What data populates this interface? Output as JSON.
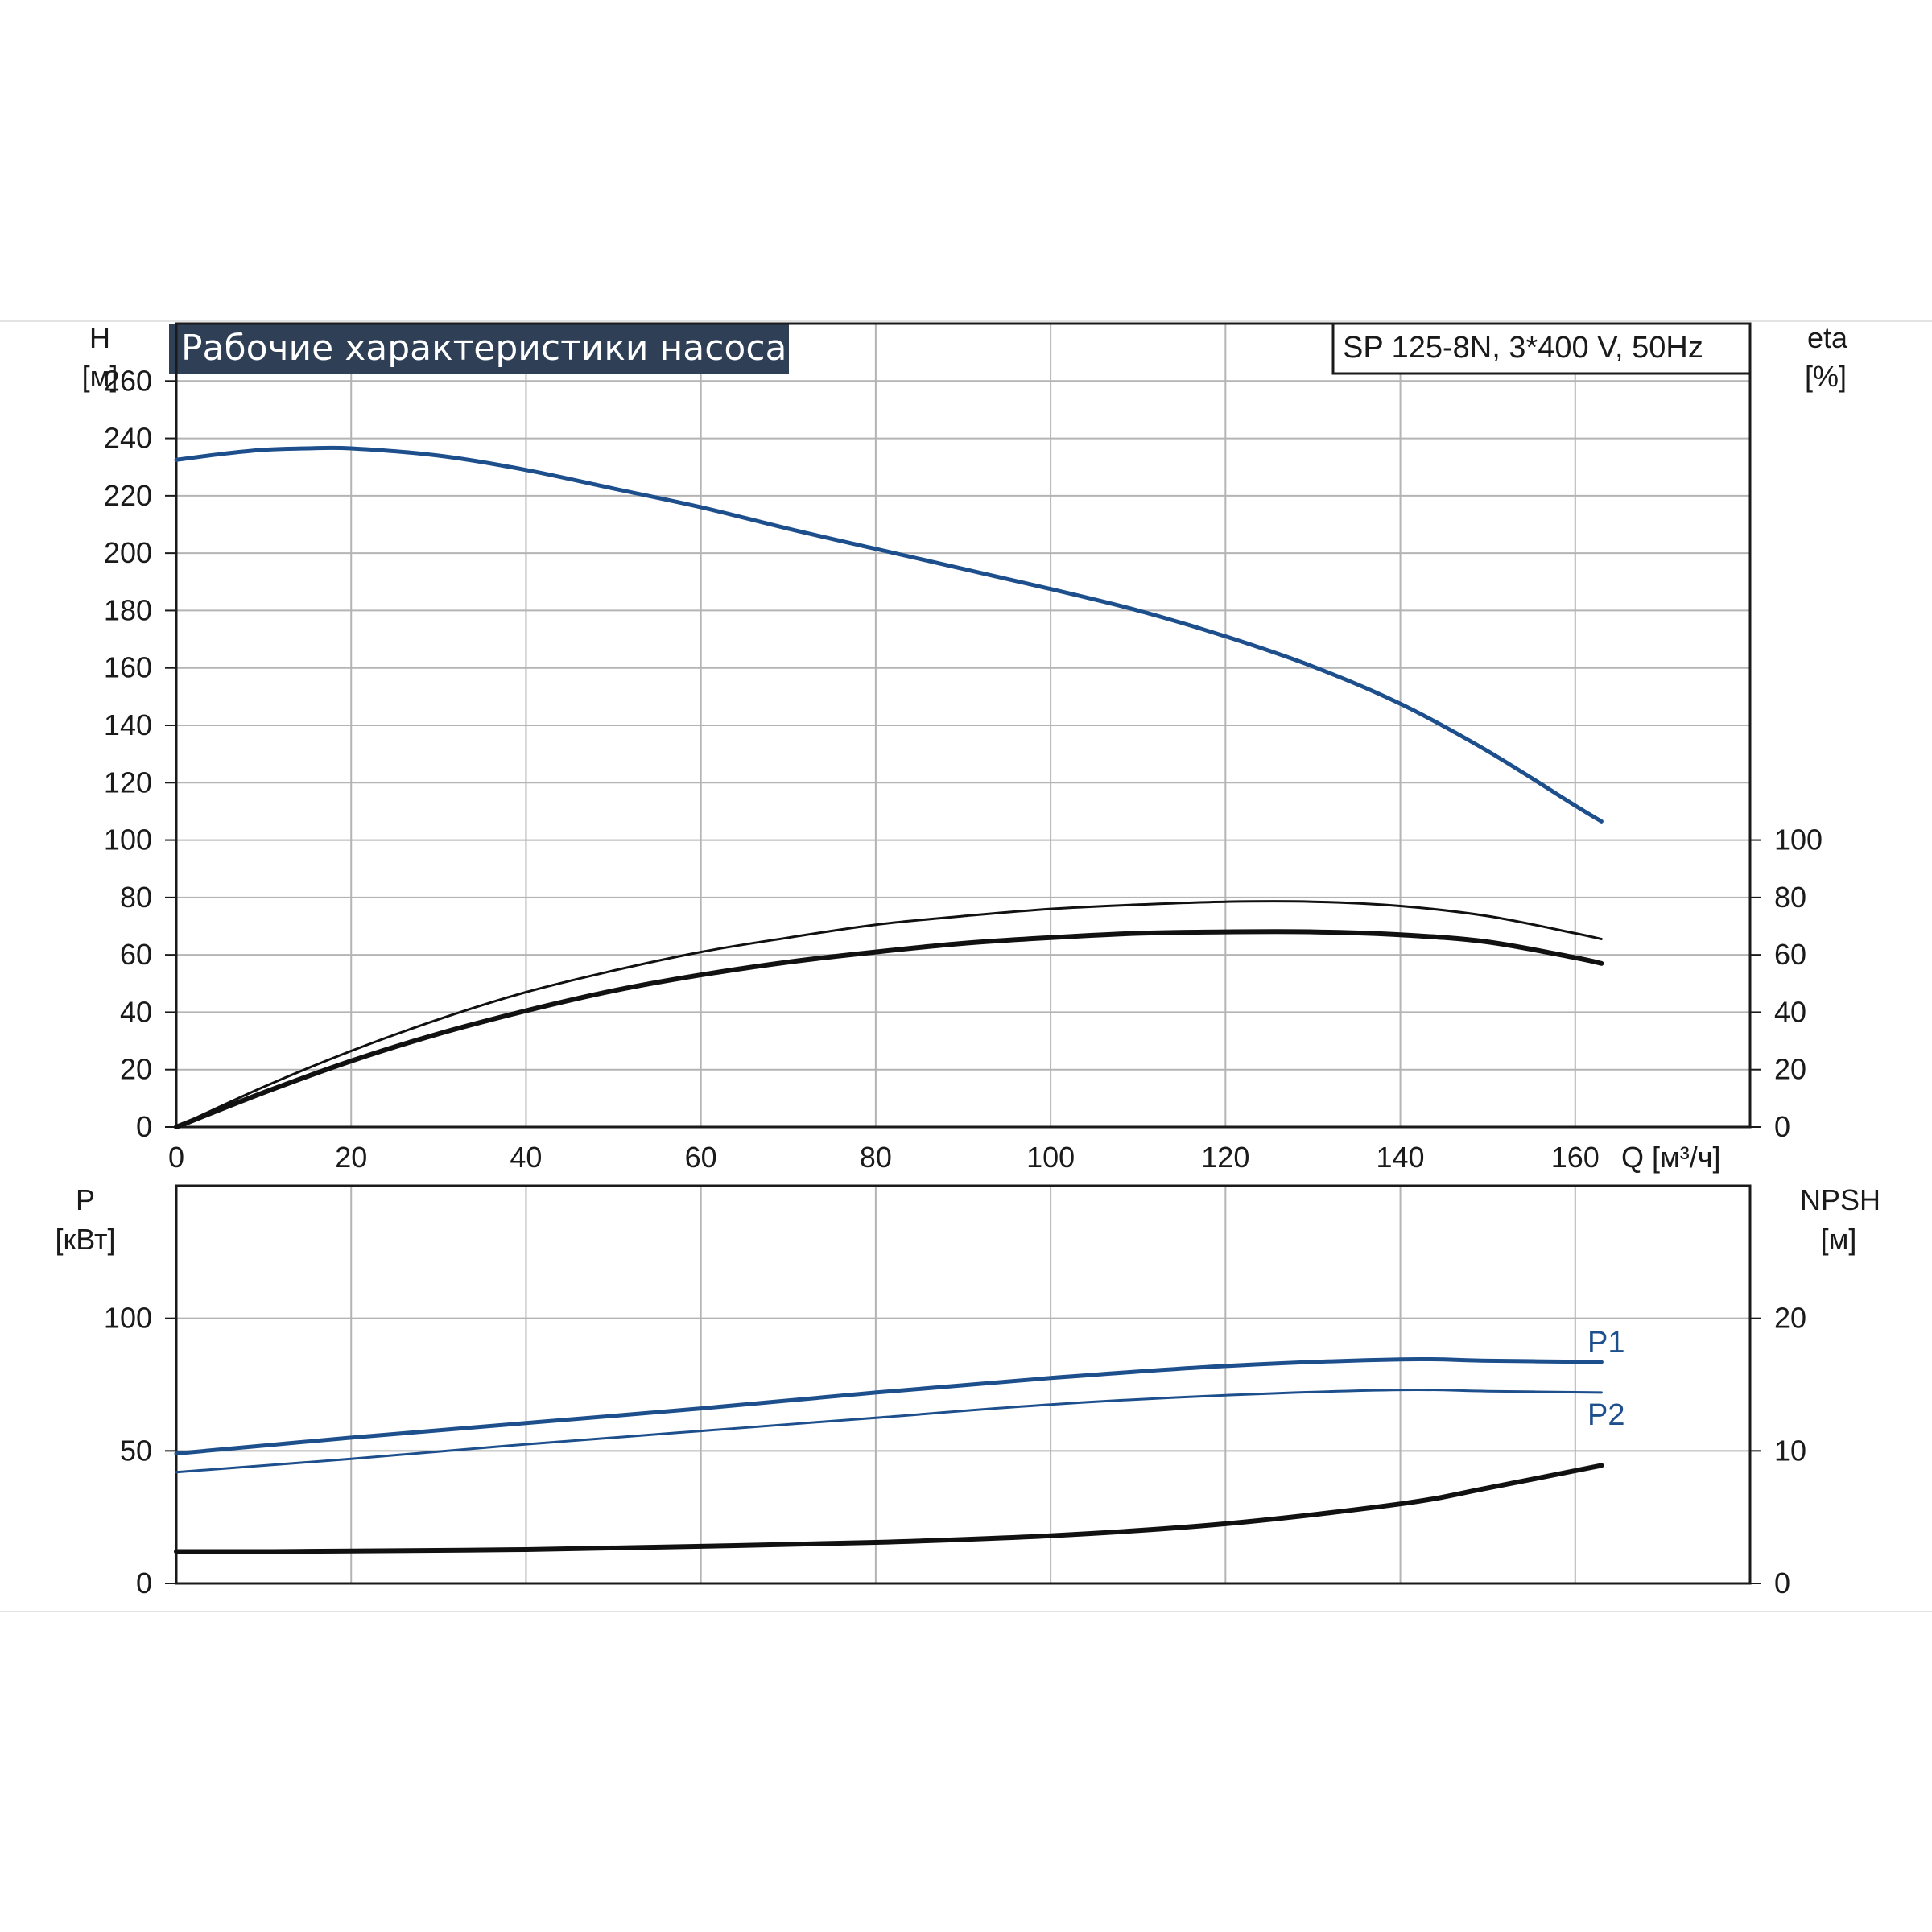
{
  "colors": {
    "blue": "#1d4f8c",
    "black": "#111111",
    "title_bg": "#2f3f55",
    "grid": "#b4b4b4"
  },
  "chart_data": [
    {
      "type": "line",
      "title": "Рабочие характеристики насоса",
      "subtitle": "SP 125-8N, 3*400 V, 50Hz",
      "xlabel": "Q [м³/ч]",
      "ylabel_left_name": "H",
      "ylabel_left_unit": "[м]",
      "ylabel_right_name": "eta",
      "ylabel_right_unit": "[%]",
      "xlim": [
        0,
        180
      ],
      "ylim_left": [
        0,
        280
      ],
      "ylim_right": [
        0,
        280
      ],
      "x_ticks": [
        0,
        20,
        40,
        60,
        80,
        100,
        120,
        140,
        160
      ],
      "y_ticks_left": [
        0,
        20,
        40,
        60,
        80,
        100,
        120,
        140,
        160,
        180,
        200,
        220,
        240,
        260
      ],
      "y_ticks_right": [
        0,
        20,
        40,
        60,
        80,
        100
      ],
      "grid": true,
      "series": [
        {
          "axis": "left",
          "color": "#1d4f8c",
          "width": 5,
          "x": [
            0,
            5,
            10,
            15,
            20,
            30,
            40,
            50,
            60,
            70,
            80,
            90,
            100,
            110,
            120,
            130,
            140,
            150,
            160,
            163
          ],
          "y": [
            232.5,
            234.5,
            236,
            236.5,
            236.5,
            234,
            229,
            222.5,
            216,
            208.5,
            201.5,
            194.5,
            187.5,
            180,
            171,
            160.5,
            147.5,
            131,
            112,
            106.5
          ]
        },
        {
          "axis": "right",
          "color": "#111111",
          "width": 3,
          "x": [
            0,
            10,
            20,
            30,
            40,
            50,
            60,
            70,
            80,
            90,
            100,
            110,
            120,
            130,
            140,
            150,
            160,
            163
          ],
          "y": [
            0,
            14,
            26.5,
            37.5,
            47,
            54.5,
            61,
            66,
            70.5,
            73.5,
            76,
            77.5,
            78.5,
            78.5,
            77,
            73.5,
            67.5,
            65.5
          ]
        },
        {
          "axis": "right",
          "color": "#111111",
          "width": 6,
          "x": [
            0,
            10,
            20,
            30,
            40,
            50,
            60,
            70,
            80,
            90,
            100,
            110,
            120,
            130,
            140,
            150,
            160,
            163
          ],
          "y": [
            0,
            12,
            23,
            32.5,
            40.5,
            47.5,
            53,
            57.5,
            61,
            64,
            66,
            67.5,
            68,
            68,
            67,
            64.5,
            59,
            57
          ]
        }
      ]
    },
    {
      "type": "line",
      "ylabel_left_name": "P",
      "ylabel_left_unit": "[кВт]",
      "ylabel_right_name": "NPSH",
      "ylabel_right_unit": "[м]",
      "xlim": [
        0,
        180
      ],
      "ylim_left": [
        0,
        150
      ],
      "ylim_right": [
        0,
        30
      ],
      "y_ticks_left": [
        0,
        50,
        100
      ],
      "y_ticks_right": [
        0,
        10,
        20
      ],
      "grid": true,
      "series": [
        {
          "name": "P1",
          "axis": "left",
          "color": "#1d4f8c",
          "width": 5,
          "x": [
            0,
            10,
            20,
            40,
            60,
            80,
            100,
            120,
            140,
            150,
            163
          ],
          "y": [
            49,
            52,
            55,
            60.5,
            66,
            72,
            77.5,
            82,
            84.5,
            84,
            83.5
          ]
        },
        {
          "name": "P2",
          "axis": "left",
          "color": "#1d4f8c",
          "width": 3,
          "x": [
            0,
            20,
            40,
            60,
            80,
            100,
            120,
            140,
            150,
            163
          ],
          "y": [
            42,
            47,
            52.5,
            57.5,
            62.5,
            67.5,
            71,
            73,
            72.5,
            72
          ]
        },
        {
          "axis": "right",
          "color": "#111111",
          "width": 6,
          "x": [
            0,
            11,
            20,
            40,
            60,
            80,
            100,
            120,
            140,
            150,
            163
          ],
          "y": [
            2.4,
            2.4,
            2.45,
            2.55,
            2.8,
            3.1,
            3.6,
            4.5,
            6.0,
            7.2,
            8.9
          ]
        }
      ]
    }
  ]
}
